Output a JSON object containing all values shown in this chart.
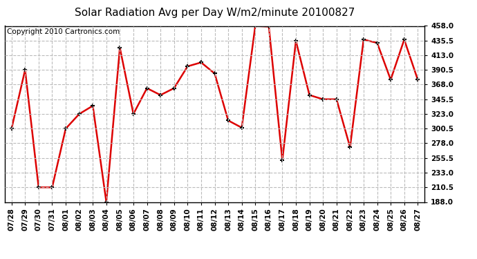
{
  "title": "Solar Radiation Avg per Day W/m2/minute 20100827",
  "copyright": "Copyright 2010 Cartronics.com",
  "dates": [
    "07/28",
    "07/29",
    "07/30",
    "07/31",
    "08/01",
    "08/02",
    "08/03",
    "08/04",
    "08/05",
    "08/06",
    "08/07",
    "08/08",
    "08/09",
    "08/10",
    "08/11",
    "08/12",
    "08/13",
    "08/14",
    "08/15",
    "08/16",
    "08/17",
    "08/18",
    "08/19",
    "08/20",
    "08/21",
    "08/22",
    "08/23",
    "08/24",
    "08/25",
    "08/26",
    "08/27"
  ],
  "values": [
    300.5,
    390.5,
    210.5,
    210.5,
    300.5,
    323.0,
    335.5,
    188.0,
    424.5,
    323.0,
    362.5,
    352.0,
    362.5,
    396.0,
    402.0,
    385.0,
    313.0,
    302.0,
    458.0,
    457.0,
    252.0,
    435.0,
    352.0,
    345.5,
    345.5,
    272.0,
    437.0,
    432.0,
    375.5,
    437.0,
    375.5
  ],
  "ylim": [
    188.0,
    458.0
  ],
  "yticks": [
    188.0,
    210.5,
    233.0,
    255.5,
    278.0,
    300.5,
    323.0,
    345.5,
    368.0,
    390.5,
    413.0,
    435.5,
    458.0
  ],
  "line_color": "#dd0000",
  "marker_color": "#000000",
  "bg_color": "#ffffff",
  "grid_color": "#bbbbbb",
  "title_fontsize": 11,
  "copyright_fontsize": 7.5
}
